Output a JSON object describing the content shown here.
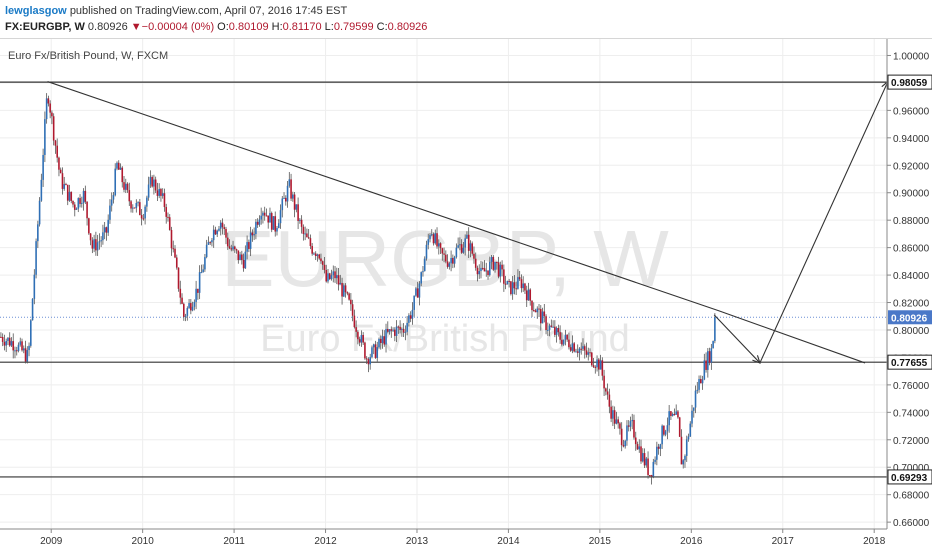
{
  "header": {
    "author": "lewglasgow",
    "published_text": "published on TradingView.com, April 07, 2016 17:45 EST",
    "symbol": "FX:EURGBP, W",
    "last": "0.80926",
    "change_arrow": "▼",
    "change": "−0.00004 (0%)",
    "o_label": "O:",
    "o_value": "0.80109",
    "h_label": "H:",
    "h_value": "0.81170",
    "l_label": "L:",
    "l_value": "0.79599",
    "c_label": "C:",
    "c_value": "0.80926"
  },
  "chart_title": "Euro Fx/British Pound, W, FXCM",
  "watermark": {
    "symbol": "EURGBP, W",
    "name": "Euro Fx/British Pound"
  },
  "colors": {
    "up": "#2f6fb5",
    "down": "#b0192e",
    "grid": "#eeeeee",
    "line": "#333333",
    "price_line": "#6b8fd6"
  },
  "chart_data": {
    "type": "candlestick",
    "x_ticks": [
      "2009",
      "2010",
      "2011",
      "2012",
      "2013",
      "2014",
      "2015",
      "2016",
      "2017",
      "2018"
    ],
    "y_ticks": [
      "0.66000",
      "0.68000",
      "0.70000",
      "0.72000",
      "0.74000",
      "0.76000",
      "0.78000",
      "0.80000",
      "0.82000",
      "0.84000",
      "0.86000",
      "0.88000",
      "0.90000",
      "0.92000",
      "0.94000",
      "0.96000",
      "0.98000",
      "1.00000"
    ],
    "ylim": [
      0.655,
      1.012
    ],
    "xlim": [
      2008.44,
      2018.14
    ],
    "path_points": [
      [
        2008.45,
        0.795
      ],
      [
        2008.6,
        0.79
      ],
      [
        2008.75,
        0.78
      ],
      [
        2008.83,
        0.855
      ],
      [
        2008.96,
        0.975
      ],
      [
        2009.1,
        0.91
      ],
      [
        2009.25,
        0.89
      ],
      [
        2009.35,
        0.9
      ],
      [
        2009.45,
        0.86
      ],
      [
        2009.6,
        0.87
      ],
      [
        2009.72,
        0.92
      ],
      [
        2009.85,
        0.895
      ],
      [
        2010.0,
        0.885
      ],
      [
        2010.1,
        0.91
      ],
      [
        2010.25,
        0.89
      ],
      [
        2010.35,
        0.85
      ],
      [
        2010.45,
        0.81
      ],
      [
        2010.6,
        0.83
      ],
      [
        2010.75,
        0.87
      ],
      [
        2010.85,
        0.88
      ],
      [
        2010.95,
        0.86
      ],
      [
        2011.1,
        0.85
      ],
      [
        2011.3,
        0.89
      ],
      [
        2011.45,
        0.875
      ],
      [
        2011.55,
        0.895
      ],
      [
        2011.6,
        0.905
      ],
      [
        2011.75,
        0.87
      ],
      [
        2011.85,
        0.86
      ],
      [
        2011.95,
        0.855
      ],
      [
        2012.0,
        0.835
      ],
      [
        2012.1,
        0.84
      ],
      [
        2012.25,
        0.82
      ],
      [
        2012.35,
        0.8
      ],
      [
        2012.45,
        0.78
      ],
      [
        2012.55,
        0.785
      ],
      [
        2012.65,
        0.795
      ],
      [
        2012.75,
        0.8
      ],
      [
        2012.85,
        0.8
      ],
      [
        2012.95,
        0.815
      ],
      [
        2013.05,
        0.84
      ],
      [
        2013.15,
        0.875
      ],
      [
        2013.25,
        0.855
      ],
      [
        2013.35,
        0.85
      ],
      [
        2013.45,
        0.86
      ],
      [
        2013.55,
        0.865
      ],
      [
        2013.7,
        0.84
      ],
      [
        2013.85,
        0.85
      ],
      [
        2014.0,
        0.83
      ],
      [
        2014.15,
        0.835
      ],
      [
        2014.25,
        0.82
      ],
      [
        2014.4,
        0.805
      ],
      [
        2014.55,
        0.795
      ],
      [
        2014.7,
        0.79
      ],
      [
        2014.8,
        0.785
      ],
      [
        2014.9,
        0.78
      ],
      [
        2015.0,
        0.775
      ],
      [
        2015.1,
        0.745
      ],
      [
        2015.25,
        0.72
      ],
      [
        2015.35,
        0.73
      ],
      [
        2015.45,
        0.71
      ],
      [
        2015.55,
        0.695
      ],
      [
        2015.65,
        0.72
      ],
      [
        2015.75,
        0.735
      ],
      [
        2015.85,
        0.735
      ],
      [
        2015.9,
        0.7
      ],
      [
        2015.97,
        0.725
      ],
      [
        2016.05,
        0.755
      ],
      [
        2016.15,
        0.775
      ],
      [
        2016.22,
        0.785
      ],
      [
        2016.27,
        0.81
      ]
    ],
    "trendline": [
      [
        2008.96,
        0.981
      ],
      [
        2016.3,
        0.814
      ],
      [
        2017.9,
        0.776
      ]
    ],
    "projection": [
      [
        2016.25,
        0.811
      ],
      [
        2016.75,
        0.776
      ],
      [
        2018.15,
        0.981
      ]
    ],
    "horizontal_levels": [
      {
        "value": 0.98059,
        "label": "0.98059"
      },
      {
        "value": 0.77655,
        "label": "0.77655"
      },
      {
        "value": 0.69293,
        "label": "0.69293"
      }
    ],
    "last_price": {
      "value": 0.80926,
      "label": "0.80926"
    }
  }
}
